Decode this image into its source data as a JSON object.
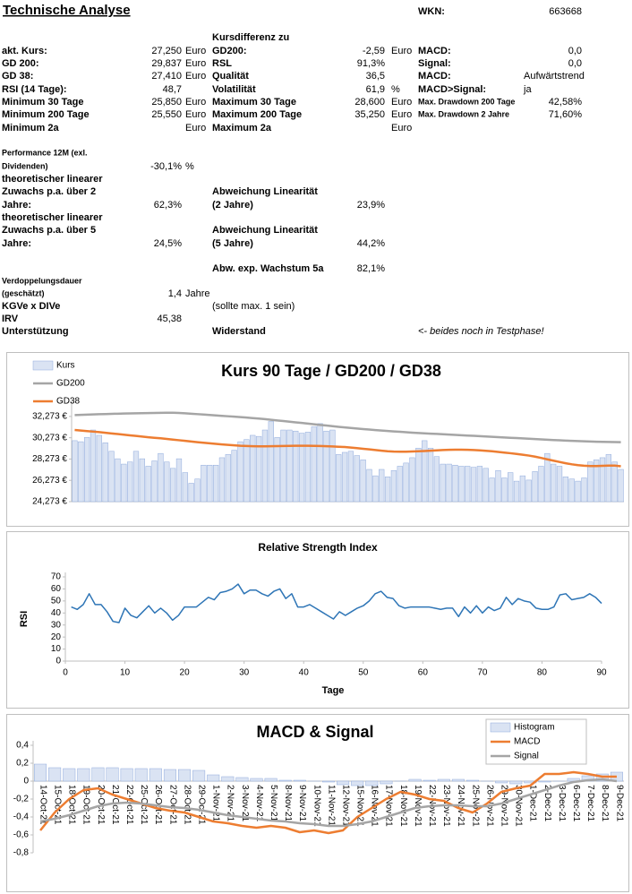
{
  "header": {
    "title": "Technische Analyse",
    "wkn_label": "WKN:",
    "wkn": "663668"
  },
  "table": {
    "rows": [
      [
        null,
        null,
        null,
        "Kursdifferenz zu"
      ],
      [
        "akt. Kurs:",
        "27,250",
        "Euro",
        "GD200:",
        "-2,59",
        "Euro",
        "MACD:",
        "0,0"
      ],
      [
        "GD 200:",
        "29,837",
        "Euro",
        "RSL",
        "91,3%",
        null,
        "Signal:",
        "0,0"
      ],
      [
        "GD 38:",
        "27,410",
        "Euro",
        "Qualität",
        "36,5",
        null,
        "MACD:",
        "Aufwärtstrend"
      ],
      [
        "RSI (14 Tage):",
        "48,7",
        null,
        "Volatilität",
        "61,9",
        "%",
        "MACD>Signal:",
        "ja"
      ],
      [
        "Minimum 30 Tage",
        "25,850",
        "Euro",
        "Maximum 30 Tage",
        "28,600",
        "Euro",
        "Max. Drawdown 200 Tage",
        "42,58%"
      ],
      [
        "Minimum 200 Tage",
        "25,550",
        "Euro",
        "Maximum 200 Tage",
        "35,250",
        "Euro",
        "Max. Drawdown 2 Jahre",
        "71,60%"
      ],
      [
        "Minimum 2a",
        null,
        "Euro",
        "Maximum 2a",
        null,
        "Euro"
      ],
      [
        "Performance 12M (exl."
      ],
      [
        "Dividenden)",
        "-30,1%",
        "%"
      ],
      [
        "theoretischer linearer"
      ],
      [
        "Zuwachs p.a. über 2",
        null,
        null,
        "Abweichung Linearität"
      ],
      [
        "Jahre:",
        "62,3%",
        null,
        "(2 Jahre)",
        "23,9%"
      ],
      [
        "theoretischer linearer"
      ],
      [
        "Zuwachs p.a. über 5",
        null,
        null,
        "Abweichung Linearität"
      ],
      [
        "Jahre:",
        "24,5%",
        null,
        "(5 Jahre)",
        "44,2%"
      ],
      [
        null,
        null,
        null,
        "Abw. exp. Wachstum 5a",
        "82,1%"
      ],
      [
        "Verdoppelungsdauer"
      ],
      [
        "(geschätzt)",
        "1,4",
        "Jahre"
      ],
      [
        "KGVe x DIVe",
        null,
        null,
        "(sollte max. 1 sein)"
      ],
      [
        "IRV",
        "45,38"
      ],
      [
        "Unterstützung",
        null,
        null,
        "Widerstand",
        null,
        null,
        "<- beides noch in Testphase!"
      ]
    ]
  },
  "chart_data": [
    {
      "type": "combo",
      "title": "Kurs 90 Tage / GD200 / GD38",
      "legend": "top-left",
      "ylim": [
        24.273,
        33.273
      ],
      "yticks": [
        {
          "value": 24.273,
          "label": "24,273 €"
        },
        {
          "value": 26.273,
          "label": "26,273 €"
        },
        {
          "value": 28.273,
          "label": "28,273 €"
        },
        {
          "value": 30.273,
          "label": "30,273 €"
        },
        {
          "value": 32.273,
          "label": "32,273 €"
        }
      ],
      "series": [
        {
          "name": "Kurs",
          "type": "bar",
          "color": "#dae3f3",
          "values": [
            30.0,
            29.9,
            30.3,
            31.0,
            30.5,
            29.8,
            29.0,
            28.3,
            27.8,
            28.0,
            29.0,
            28.3,
            27.6,
            28.1,
            28.8,
            28.0,
            27.4,
            28.3,
            27.0,
            26.0,
            26.4,
            27.7,
            27.7,
            27.7,
            28.4,
            28.7,
            29.1,
            29.9,
            30.1,
            30.5,
            30.4,
            31.0,
            31.8,
            30.3,
            31.0,
            31.0,
            30.9,
            30.7,
            30.8,
            31.3,
            31.6,
            30.9,
            31.0,
            28.7,
            28.9,
            29.0,
            28.6,
            28.2,
            27.3,
            26.7,
            27.3,
            26.6,
            27.2,
            27.6,
            27.9,
            28.4,
            29.3,
            30.0,
            29.3,
            28.5,
            27.8,
            27.8,
            27.7,
            27.6,
            27.6,
            27.5,
            27.6,
            27.4,
            26.5,
            27.2,
            26.5,
            27.0,
            26.2,
            26.7,
            26.3,
            27.1,
            27.6,
            28.8,
            27.8,
            27.6,
            26.6,
            26.4,
            26.2,
            26.5,
            28.0,
            28.2,
            28.4,
            28.7,
            28.0,
            27.3
          ]
        },
        {
          "name": "GD200",
          "type": "line",
          "color": "#a5a5a5",
          "values": [
            32.4,
            32.42,
            32.44,
            32.46,
            32.48,
            32.5,
            32.52,
            32.53,
            32.55,
            32.56,
            32.57,
            32.58,
            32.59,
            32.6,
            32.61,
            32.62,
            32.62,
            32.6,
            32.57,
            32.53,
            32.49,
            32.45,
            32.41,
            32.37,
            32.33,
            32.29,
            32.25,
            32.21,
            32.17,
            32.12,
            32.07,
            32.02,
            31.96,
            31.9,
            31.84,
            31.78,
            31.72,
            31.66,
            31.6,
            31.54,
            31.48,
            31.42,
            31.36,
            31.3,
            31.24,
            31.19,
            31.14,
            31.09,
            31.04,
            30.99,
            30.95,
            30.91,
            30.87,
            30.83,
            30.79,
            30.75,
            30.72,
            30.69,
            30.66,
            30.63,
            30.6,
            30.57,
            30.54,
            30.51,
            30.48,
            30.45,
            30.42,
            30.39,
            30.36,
            30.33,
            30.3,
            30.27,
            30.24,
            30.21,
            30.18,
            30.15,
            30.12,
            30.09,
            30.06,
            30.03,
            30.0,
            29.98,
            29.96,
            29.94,
            29.92,
            29.9,
            29.89,
            29.88,
            29.87,
            29.86
          ]
        },
        {
          "name": "GD38",
          "type": "line",
          "color": "#ed7d31",
          "values": [
            31.0,
            30.95,
            30.9,
            30.85,
            30.8,
            30.74,
            30.68,
            30.62,
            30.56,
            30.5,
            30.44,
            30.38,
            30.32,
            30.27,
            30.22,
            30.16,
            30.1,
            30.04,
            29.98,
            29.92,
            29.86,
            29.8,
            29.75,
            29.7,
            29.65,
            29.6,
            29.56,
            29.52,
            29.5,
            29.48,
            29.47,
            29.47,
            29.48,
            29.49,
            29.5,
            29.51,
            29.52,
            29.52,
            29.52,
            29.51,
            29.5,
            29.48,
            29.46,
            29.43,
            29.4,
            29.35,
            29.3,
            29.24,
            29.18,
            29.12,
            29.06,
            29.0,
            28.97,
            28.96,
            28.96,
            28.98,
            29.0,
            29.03,
            29.06,
            29.09,
            29.12,
            29.14,
            29.15,
            29.15,
            29.14,
            29.12,
            29.09,
            29.05,
            29.0,
            28.94,
            28.88,
            28.82,
            28.75,
            28.68,
            28.6,
            28.5,
            28.38,
            28.25,
            28.12,
            28.0,
            27.88,
            27.78,
            27.7,
            27.65,
            27.62,
            27.62,
            27.64,
            27.66,
            27.66,
            27.6
          ]
        }
      ]
    },
    {
      "type": "line",
      "title": "Relative Strength Index",
      "x_label": "Tage",
      "y_label": "RSI",
      "color": "#2e75b6",
      "x": [
        1,
        2,
        3,
        4,
        5,
        6,
        7,
        8,
        9,
        10,
        11,
        12,
        13,
        14,
        15,
        16,
        17,
        18,
        19,
        20,
        21,
        22,
        23,
        24,
        25,
        26,
        27,
        28,
        29,
        30,
        31,
        32,
        33,
        34,
        35,
        36,
        37,
        38,
        39,
        40,
        41,
        42,
        43,
        44,
        45,
        46,
        47,
        48,
        49,
        50,
        51,
        52,
        53,
        54,
        55,
        56,
        57,
        58,
        59,
        60,
        61,
        62,
        63,
        64,
        65,
        66,
        67,
        68,
        69,
        70,
        71,
        72,
        73,
        74,
        75,
        76,
        77,
        78,
        79,
        80,
        81,
        82,
        83,
        84,
        85,
        86,
        87,
        88,
        89,
        90
      ],
      "values": [
        45,
        43,
        47,
        56,
        47,
        47,
        41,
        33,
        32,
        44,
        38,
        36,
        41,
        46,
        40,
        44,
        40,
        34,
        38,
        45,
        45,
        45,
        49,
        53,
        51,
        57,
        58,
        60,
        64,
        56,
        59,
        59,
        56,
        54,
        58,
        60,
        52,
        56,
        45,
        45,
        47,
        44,
        41,
        38,
        35,
        41,
        38,
        41,
        44,
        46,
        50,
        56,
        58,
        53,
        52,
        46,
        44,
        45,
        45,
        45,
        45,
        44,
        43,
        44,
        44,
        37,
        45,
        40,
        46,
        40,
        45,
        42,
        44,
        53,
        47,
        52,
        50,
        49,
        44,
        43,
        43,
        45,
        55,
        56,
        51,
        52,
        53,
        56,
        53,
        48
      ],
      "xlim": [
        0,
        90
      ],
      "xticks": [
        0,
        10,
        20,
        30,
        40,
        50,
        60,
        70,
        80,
        90
      ],
      "ylim": [
        0,
        70
      ],
      "yticks": [
        0,
        10,
        20,
        30,
        40,
        50,
        60,
        70
      ]
    },
    {
      "type": "combo",
      "title": "MACD & Signal",
      "legend": "top-right",
      "categories": [
        "14-Oct-21",
        "15-Oct-21",
        "18-Oct-21",
        "19-Oct-21",
        "20-Oct-21",
        "21-Oct-21",
        "22-Oct-21",
        "25-Oct-21",
        "26-Oct-21",
        "27-Oct-21",
        "28-Oct-21",
        "29-Oct-21",
        "1-Nov-21",
        "2-Nov-21",
        "3-Nov-21",
        "4-Nov-21",
        "5-Nov-21",
        "8-Nov-21",
        "9-Nov-21",
        "10-Nov-21",
        "11-Nov-21",
        "12-Nov-21",
        "15-Nov-21",
        "16-Nov-21",
        "17-Nov-21",
        "18-Nov-21",
        "19-Nov-21",
        "22-Nov-21",
        "23-Nov-21",
        "24-Nov-21",
        "25-Nov-21",
        "26-Nov-21",
        "29-Nov-21",
        "30-Nov-21",
        "1-Dec-21",
        "2-Dec-21",
        "3-Dec-21",
        "6-Dec-21",
        "7-Dec-21",
        "8-Dec-21",
        "9-Dec-21"
      ],
      "ylim": [
        -0.8,
        0.4
      ],
      "yticks": [
        {
          "value": -0.8,
          "label": "-0,8"
        },
        {
          "value": -0.6,
          "label": "-0,6"
        },
        {
          "value": -0.4,
          "label": "-0,4"
        },
        {
          "value": -0.2,
          "label": "-0,2"
        },
        0,
        {
          "value": 0.2,
          "label": "0,2"
        },
        {
          "value": 0.4,
          "label": "0,4"
        }
      ],
      "series": [
        {
          "name": "Histogram",
          "type": "bar",
          "color": "#dae3f3",
          "values": [
            0.19,
            0.15,
            0.14,
            0.14,
            0.15,
            0.15,
            0.14,
            0.14,
            0.14,
            0.13,
            0.13,
            0.12,
            0.07,
            0.05,
            0.04,
            0.03,
            0.03,
            0.01,
            0.01,
            0.0,
            -0.01,
            -0.04,
            -0.05,
            -0.05,
            -0.03,
            0.0,
            0.02,
            0.01,
            0.02,
            0.02,
            0.01,
            0.0,
            -0.02,
            -0.03,
            -0.02,
            -0.01,
            0.0,
            0.03,
            0.06,
            0.08,
            0.1
          ]
        },
        {
          "name": "MACD",
          "type": "line",
          "color": "#ed7d31",
          "values": [
            -0.55,
            -0.35,
            -0.2,
            -0.1,
            -0.08,
            -0.15,
            -0.2,
            -0.25,
            -0.3,
            -0.33,
            -0.35,
            -0.4,
            -0.45,
            -0.47,
            -0.5,
            -0.52,
            -0.5,
            -0.52,
            -0.57,
            -0.55,
            -0.58,
            -0.55,
            -0.4,
            -0.3,
            -0.2,
            -0.12,
            -0.15,
            -0.2,
            -0.22,
            -0.3,
            -0.35,
            -0.25,
            -0.12,
            -0.08,
            -0.05,
            0.08,
            0.08,
            0.1,
            0.08,
            0.05,
            0.05
          ]
        },
        {
          "name": "Signal",
          "type": "line",
          "color": "#a5a5a5",
          "values": [
            -0.45,
            -0.42,
            -0.38,
            -0.33,
            -0.28,
            -0.25,
            -0.24,
            -0.25,
            -0.27,
            -0.29,
            -0.3,
            -0.32,
            -0.35,
            -0.38,
            -0.4,
            -0.42,
            -0.44,
            -0.45,
            -0.47,
            -0.48,
            -0.5,
            -0.5,
            -0.48,
            -0.45,
            -0.4,
            -0.35,
            -0.3,
            -0.28,
            -0.27,
            -0.27,
            -0.28,
            -0.28,
            -0.25,
            -0.2,
            -0.15,
            -0.1,
            -0.05,
            -0.01,
            0.01,
            0.02,
            0.0
          ]
        }
      ]
    }
  ]
}
